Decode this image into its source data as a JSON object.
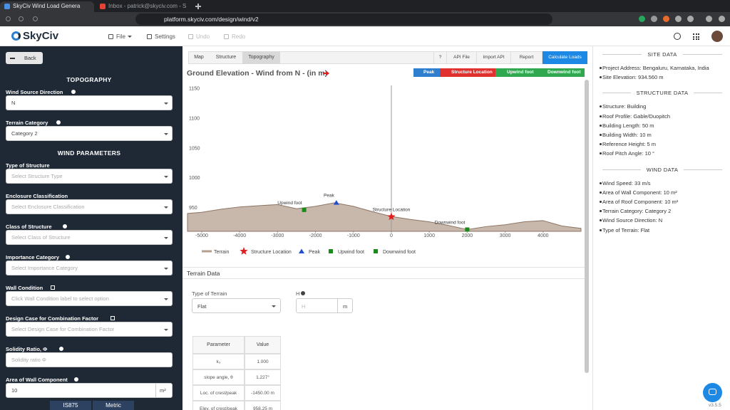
{
  "browser": {
    "tabs": [
      "SkyCiv Wind Load Genera",
      "Inbox - patrick@skyciv.com - S"
    ],
    "url": "platform.skyciv.com/design/wind/v2"
  },
  "toolbar": {
    "logo": "SkyCiv",
    "menu": [
      {
        "label": "File",
        "disabled": false
      },
      {
        "label": "Settings",
        "disabled": false
      },
      {
        "label": "Undo",
        "disabled": true
      },
      {
        "label": "Redo",
        "disabled": true
      }
    ]
  },
  "sidebar": {
    "back": "Back",
    "sections": [
      {
        "title": "TOPOGRAPHY",
        "fields": [
          {
            "label": "Wind Source Direction",
            "icon": "info",
            "kind": "select",
            "value": "N"
          },
          {
            "label": "Terrain Category",
            "icon": "info",
            "kind": "select",
            "value": "Category 2"
          }
        ]
      },
      {
        "title": "WIND PARAMETERS",
        "fields": [
          {
            "label": "Type of Structure",
            "icon": "none",
            "kind": "select",
            "placeholder": "Select Structure Type"
          },
          {
            "label": "Enclosure Classification",
            "icon": "none",
            "kind": "select",
            "placeholder": "Select Enclosure Classification"
          },
          {
            "label": "Class of Structure",
            "icon": "info",
            "kind": "select",
            "placeholder": "Select Class of Structure"
          },
          {
            "label": "Importance Category",
            "icon": "info",
            "kind": "select",
            "placeholder": "Select Importance Category"
          },
          {
            "label": "Wall Condition",
            "icon": "link",
            "kind": "select",
            "placeholder": "Click Wall Condition label to select option"
          },
          {
            "label": "Design Case for Combination Factor",
            "icon": "link",
            "kind": "select",
            "placeholder": "Select Design Case for Combination Factor"
          },
          {
            "label": "Solidity Ratio, Φ",
            "icon": "info",
            "kind": "input",
            "placeholder": "Solidity ratio Φ"
          },
          {
            "label": "Area of Wall Component",
            "icon": "info",
            "kind": "input",
            "value": "10",
            "unit": "m²"
          }
        ]
      }
    ],
    "footer_tabs": [
      "IS875",
      "Metric"
    ]
  },
  "main": {
    "tabs": [
      "Map",
      "Structure",
      "Topography"
    ],
    "active_tab": 2,
    "actions": [
      "?",
      "API File",
      "Import API",
      "Report",
      "Calculate Loads"
    ],
    "chart_buttons": [
      {
        "label": "Peak",
        "color": "#2f7fd0"
      },
      {
        "label": "Structure Location",
        "color": "#e0312f"
      },
      {
        "label": "Upwind foot",
        "color": "#2fa84f"
      },
      {
        "label": "Downwind foot",
        "color": "#2fa84f"
      }
    ]
  },
  "chart_data": {
    "type": "area",
    "title": "Ground Elevation - Wind from N - (in m)",
    "xlim": [
      -5375,
      5000
    ],
    "ylim": [
      910,
      1155
    ],
    "xticks": [
      -5000,
      -4000,
      -3000,
      -2000,
      -1000,
      0,
      1000,
      2000,
      3000,
      4000
    ],
    "yticks": [
      950,
      1000,
      1050,
      1100,
      1150
    ],
    "grid": false,
    "series": [
      {
        "name": "Terrain",
        "color": "#b5a090",
        "marker": "line",
        "x": [
          -5375,
          -5000,
          -4500,
          -4000,
          -3500,
          -3000,
          -2500,
          -2000,
          -1500,
          -1000,
          -500,
          0,
          500,
          1000,
          1500,
          2000,
          2500,
          3000,
          3500,
          4000,
          4500,
          5000
        ],
        "values": [
          940,
          942,
          947,
          951,
          953,
          955,
          948,
          952,
          958,
          952,
          943,
          935,
          930,
          926,
          920,
          913,
          918,
          921,
          926,
          928,
          919,
          915
        ]
      },
      {
        "name": "Structure Location",
        "color": "#e02020",
        "marker": "star",
        "label_anchor": "middle",
        "x": [
          0
        ],
        "values": [
          934.56
        ]
      },
      {
        "name": "Peak",
        "color": "#1f4fd0",
        "marker": "triangle",
        "label_anchor": "end",
        "x": [
          -1450
        ],
        "values": [
          958.25
        ]
      },
      {
        "name": "Upwind foot",
        "color": "#1a8a1a",
        "marker": "square",
        "label_anchor": "end",
        "x": [
          -2300
        ],
        "values": [
          946
        ]
      },
      {
        "name": "Downwind foot",
        "color": "#1a8a1a",
        "marker": "square",
        "label_anchor": "end",
        "x": [
          2000
        ],
        "values": [
          913
        ]
      }
    ]
  },
  "terrain_data": {
    "title": "Terrain Data",
    "type_label": "Type of Terrain",
    "type_value": "Flat",
    "h_label": "H",
    "h_placeholder": "H",
    "h_unit": "m",
    "table": {
      "header": [
        "Parameter",
        "Value"
      ],
      "rows": [
        [
          "k₃",
          "1.000"
        ],
        [
          "slope angle, θ",
          "1.227°"
        ],
        [
          "Loc. of crest/peak",
          "-1450.00 m"
        ],
        [
          "Elev. of crest/peak",
          "958.25 m"
        ]
      ]
    }
  },
  "summary": [
    {
      "title": "SITE DATA",
      "items": [
        "Project Address: Bengaluru, Karnataka, India",
        "Site Elevation: 934.560 m"
      ]
    },
    {
      "title": "STRUCTURE DATA",
      "items": [
        "Structure: Building",
        "Roof Profile: Gable/Duopitch",
        "Building Length: 50 m",
        "Building Width: 10 m",
        "Reference Height: 5 m",
        "Roof Pitch Angle: 10 °"
      ]
    },
    {
      "title": "WIND DATA",
      "items": [
        "Wind Speed: 33 m/s",
        "Area of Wall Component: 10 m²",
        "Area of Roof Component: 10 m²",
        "Terrain Category: Category 2",
        "Wind Source Direction: N",
        "Type of Terrain: Flat"
      ]
    }
  ],
  "version": "v3.5.5"
}
